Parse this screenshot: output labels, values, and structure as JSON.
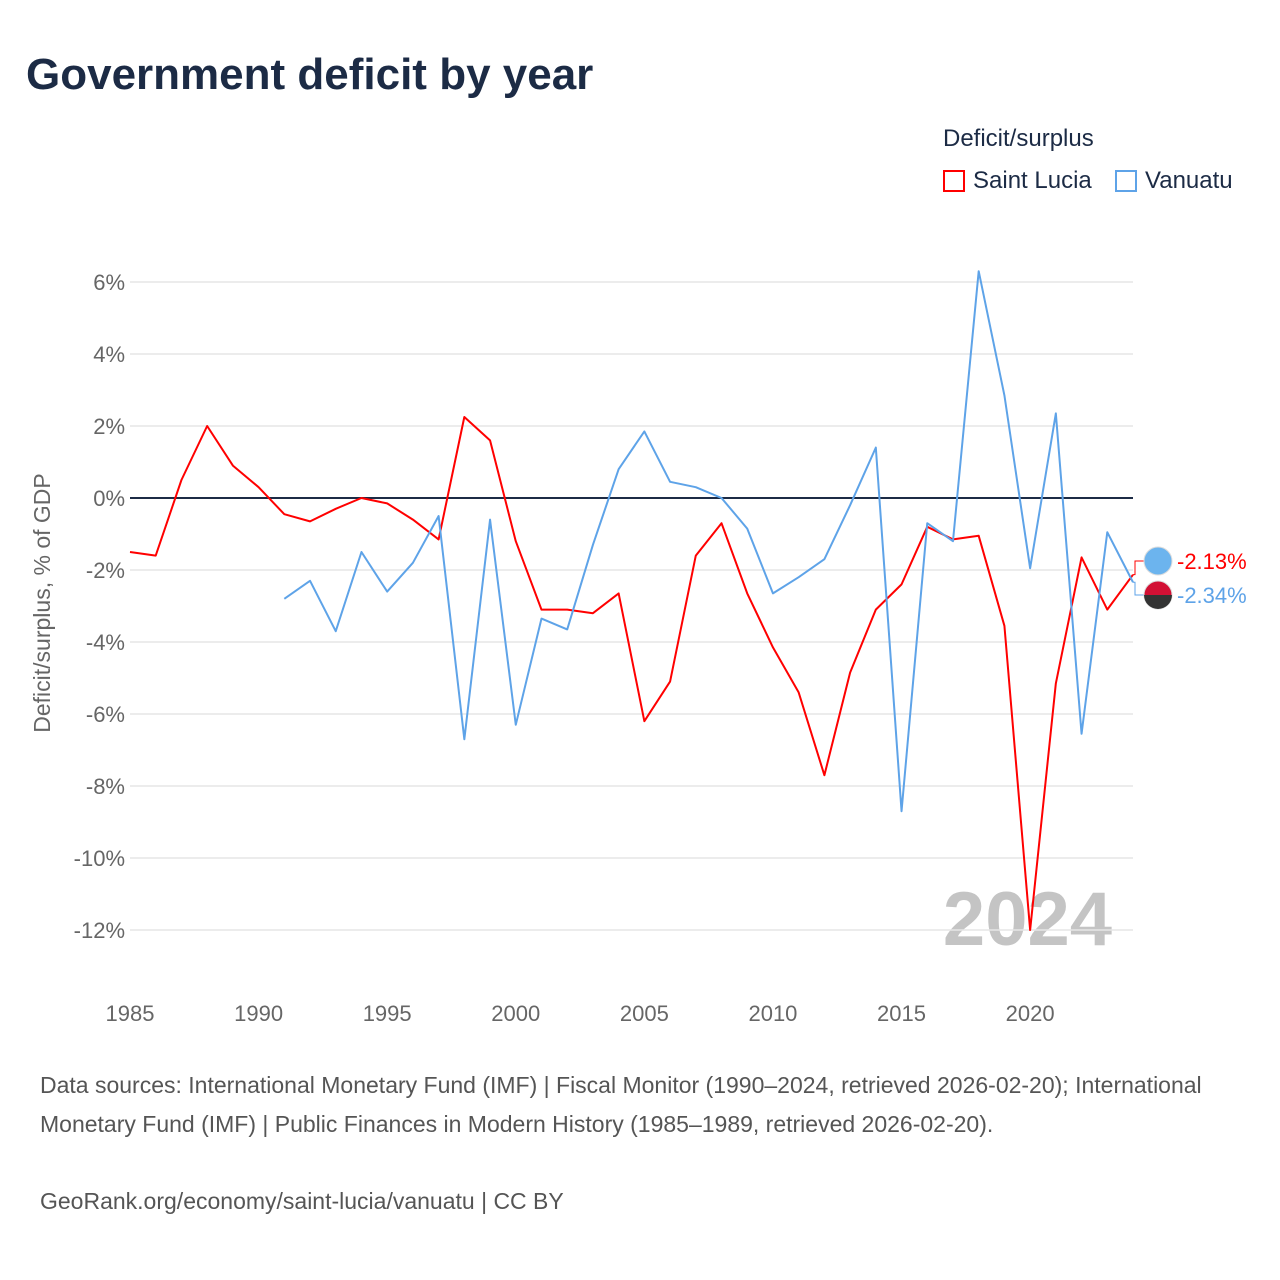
{
  "chart_data": {
    "type": "line",
    "title": "Government deficit by year",
    "xlabel": "",
    "ylabel": "Deficit/surplus, % of GDP",
    "xlim": [
      1985,
      2024
    ],
    "ylim": [
      -13,
      6.5
    ],
    "y_ticks": [
      6,
      4,
      2,
      0,
      -2,
      -4,
      -6,
      -8,
      -10,
      -12
    ],
    "y_tick_labels": [
      "6%",
      "4%",
      "2%",
      "0%",
      "-2%",
      "-4%",
      "-6%",
      "-8%",
      "-10%",
      "-12%"
    ],
    "x_ticks": [
      1985,
      1990,
      1995,
      2000,
      2005,
      2010,
      2015,
      2020
    ],
    "x_tick_labels": [
      "1985",
      "1990",
      "1995",
      "2000",
      "2005",
      "2010",
      "2015",
      "2020"
    ],
    "grid": true,
    "legend_title": "Deficit/surplus",
    "legend_position": "top-right",
    "year_watermark": "2024",
    "series": [
      {
        "name": "Saint Lucia",
        "color": "#ff0000",
        "end_label": "-2.13%",
        "x": [
          1985,
          1986,
          1987,
          1988,
          1989,
          1990,
          1991,
          1992,
          1993,
          1994,
          1995,
          1996,
          1997,
          1998,
          1999,
          2000,
          2001,
          2002,
          2003,
          2004,
          2005,
          2006,
          2007,
          2008,
          2009,
          2010,
          2011,
          2012,
          2013,
          2014,
          2015,
          2016,
          2017,
          2018,
          2019,
          2020,
          2021,
          2022,
          2023,
          2024
        ],
        "values": [
          -1.5,
          -1.6,
          0.5,
          2.0,
          0.9,
          0.3,
          -0.45,
          -0.65,
          -0.3,
          0,
          -0.15,
          -0.6,
          -1.15,
          2.25,
          1.6,
          -1.2,
          -3.1,
          -3.1,
          -3.2,
          -2.65,
          -6.2,
          -5.1,
          -1.6,
          -0.7,
          -2.65,
          -4.15,
          -5.4,
          -7.7,
          -4.85,
          -3.1,
          -2.4,
          -0.8,
          -1.15,
          -1.05,
          -3.55,
          -12.0,
          -5.15,
          -1.65,
          -3.1,
          -2.13
        ]
      },
      {
        "name": "Vanuatu",
        "color": "#5ea3e8",
        "end_label": "-2.34%",
        "x": [
          1991,
          1992,
          1993,
          1994,
          1995,
          1996,
          1997,
          1998,
          1999,
          2000,
          2001,
          2002,
          2003,
          2004,
          2005,
          2006,
          2007,
          2008,
          2009,
          2010,
          2011,
          2012,
          2013,
          2014,
          2015,
          2016,
          2017,
          2018,
          2019,
          2020,
          2021,
          2022,
          2023,
          2024
        ],
        "values": [
          -2.8,
          -2.3,
          -3.7,
          -1.5,
          -2.6,
          -1.8,
          -0.5,
          -6.7,
          -0.6,
          -6.3,
          -3.35,
          -3.65,
          -1.3,
          0.8,
          1.85,
          0.45,
          0.3,
          0,
          -0.85,
          -2.65,
          -2.2,
          -1.7,
          -0.2,
          1.4,
          -8.7,
          -0.7,
          -1.2,
          6.3,
          2.85,
          -1.95,
          2.35,
          -6.55,
          -0.95,
          -2.34
        ]
      }
    ]
  },
  "footer": {
    "sources": "Data sources: International Monetary Fund (IMF) | Fiscal Monitor (1990–2024, retrieved 2026-02-20); International Monetary Fund (IMF) | Public Finances in Modern History (1985–1989, retrieved 2026-02-20).",
    "credit": "GeoRank.org/economy/saint-lucia/vanuatu | CC BY"
  }
}
